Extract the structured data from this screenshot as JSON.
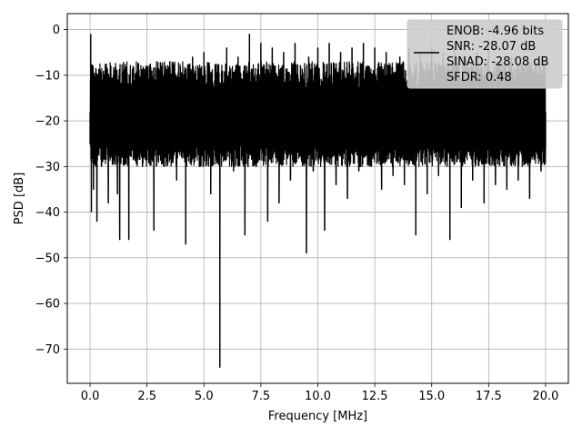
{
  "chart_data": {
    "type": "line",
    "title": "",
    "xlabel": "Frequency [MHz]",
    "ylabel": "PSD [dB]",
    "xlim": [
      -1.0,
      21.0
    ],
    "ylim": [
      -77.5,
      3.5
    ],
    "xticks": [
      0.0,
      2.5,
      5.0,
      7.5,
      10.0,
      12.5,
      15.0,
      17.5,
      20.0
    ],
    "xtick_labels": [
      "0.0",
      "2.5",
      "5.0",
      "7.5",
      "10.0",
      "12.5",
      "15.0",
      "17.5",
      "20.0"
    ],
    "yticks": [
      0,
      -10,
      -20,
      -30,
      -40,
      -50,
      -60,
      -70
    ],
    "ytick_labels": [
      "0",
      "−10",
      "−20",
      "−30",
      "−40",
      "−50",
      "−60",
      "−70"
    ],
    "grid": true,
    "legend_position": "top-right",
    "series": [
      {
        "color": "#000000",
        "description": "noise-like PSD spectrum, dense oscillation mostly between about -30 and -5 dB",
        "x": [
          0.0,
          0.03,
          0.06,
          0.1,
          0.15,
          0.2,
          0.3,
          0.4,
          0.5,
          0.6,
          0.8,
          1.0,
          1.2,
          1.3,
          1.5,
          1.7,
          2.0,
          2.3,
          2.5,
          2.8,
          3.0,
          3.3,
          3.5,
          3.8,
          4.0,
          4.2,
          4.5,
          4.8,
          5.0,
          5.3,
          5.5,
          5.7,
          5.8,
          6.0,
          6.3,
          6.5,
          6.8,
          7.0,
          7.3,
          7.5,
          7.8,
          8.0,
          8.3,
          8.5,
          8.8,
          9.0,
          9.3,
          9.5,
          9.6,
          9.8,
          10.0,
          10.3,
          10.5,
          10.8,
          11.0,
          11.3,
          11.5,
          11.8,
          12.0,
          12.3,
          12.5,
          12.8,
          13.0,
          13.3,
          13.6,
          13.8,
          14.0,
          14.3,
          14.5,
          14.8,
          15.0,
          15.3,
          15.5,
          15.8,
          16.0,
          16.3,
          16.5,
          16.8,
          17.0,
          17.3,
          17.5,
          17.8,
          18.0,
          18.3,
          18.5,
          18.8,
          19.0,
          19.3,
          19.5,
          19.8,
          20.0
        ],
        "y": [
          -25,
          -1,
          -40,
          -8,
          -35,
          -12,
          -42,
          -10,
          -30,
          -14,
          -38,
          -11,
          -36,
          -46,
          -12,
          -46,
          -10,
          -30,
          -8,
          -44,
          -9,
          -28,
          -7,
          -33,
          -10,
          -47,
          -6,
          -30,
          -5,
          -36,
          -9,
          -74,
          -12,
          -4,
          -31,
          -6,
          -45,
          -1,
          -30,
          -3,
          -42,
          -4,
          -38,
          -5,
          -33,
          -3,
          -29,
          -49,
          -6,
          -31,
          -4,
          -44,
          -3,
          -34,
          -5,
          -37,
          -4,
          -31,
          -3,
          -30,
          -4,
          -35,
          -5,
          -32,
          -6,
          -34,
          -4,
          -45,
          -5,
          -36,
          -4,
          -32,
          -5,
          -46,
          -4,
          -39,
          -6,
          -33,
          -5,
          -38,
          -4,
          -34,
          -7,
          -35,
          -6,
          -33,
          -8,
          -37,
          -10,
          -31,
          -26
        ]
      }
    ],
    "legend": {
      "lines": [
        "ENOB: -4.96 bits",
        "SNR: -28.07 dB",
        "SINAD: -28.08 dB",
        "SFDR: 0.48"
      ]
    }
  }
}
